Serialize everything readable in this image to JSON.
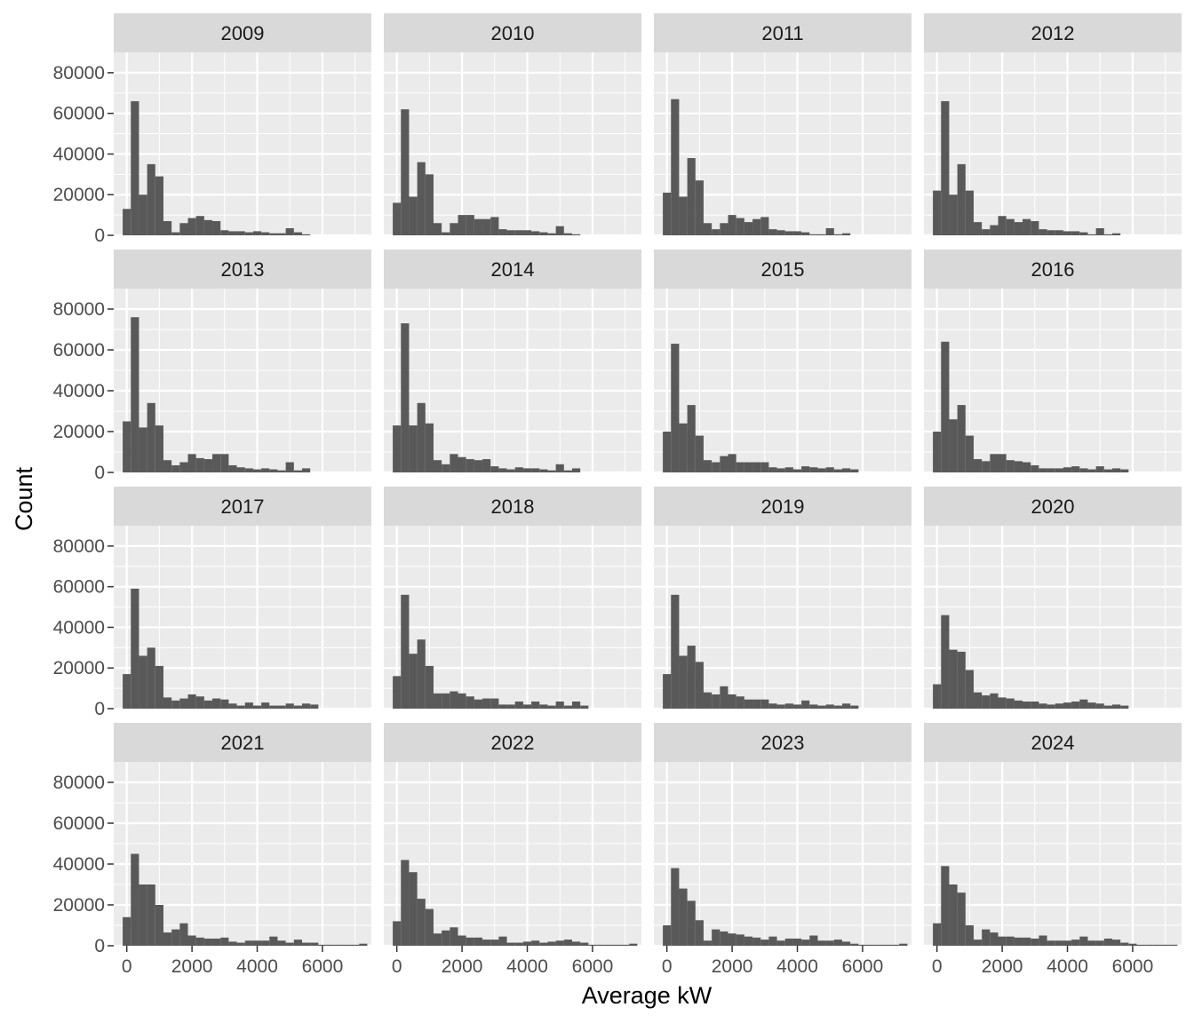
{
  "chart_data": {
    "type": "bar",
    "layout": "facet-grid",
    "xlabel": "Average kW",
    "ylabel": "Count",
    "xlim": [
      -400,
      7500
    ],
    "ylim": [
      0,
      90000
    ],
    "x_ticks": [
      0,
      2000,
      4000,
      6000
    ],
    "y_ticks": [
      0,
      20000,
      40000,
      60000,
      80000
    ],
    "grid": true,
    "bin_width": 250,
    "bin_centers": [
      0,
      250,
      500,
      750,
      1000,
      1250,
      1500,
      1750,
      2000,
      2250,
      2500,
      2750,
      3000,
      3250,
      3500,
      3750,
      4000,
      4250,
      4500,
      4750,
      5000,
      5250,
      5500,
      5750,
      6000,
      6250,
      6500,
      6750,
      7000,
      7250
    ],
    "colors": {
      "bar": "#595959",
      "panel_bg": "#ebebeb",
      "strip_bg": "#d9d9d9",
      "grid": "#ffffff"
    },
    "panels": [
      {
        "year": "2009",
        "values": [
          13000,
          66000,
          20000,
          35000,
          29000,
          7000,
          1500,
          6000,
          8500,
          9500,
          7500,
          7000,
          2500,
          2000,
          2000,
          1500,
          2000,
          1500,
          1000,
          1000,
          3500,
          1500,
          500,
          0,
          0,
          0,
          0,
          0,
          0,
          0
        ]
      },
      {
        "year": "2010",
        "values": [
          16000,
          62000,
          19000,
          36000,
          30000,
          6000,
          1500,
          6000,
          10000,
          10000,
          8000,
          8000,
          9000,
          3000,
          2500,
          2500,
          2500,
          2000,
          1500,
          1000,
          4500,
          1000,
          500,
          0,
          0,
          0,
          0,
          0,
          0,
          0
        ]
      },
      {
        "year": "2011",
        "values": [
          21000,
          67000,
          19000,
          38000,
          27000,
          6000,
          3000,
          6000,
          10000,
          8500,
          6500,
          8000,
          9000,
          3000,
          2500,
          2000,
          2000,
          1500,
          500,
          500,
          3500,
          500,
          1000,
          0,
          0,
          0,
          0,
          0,
          0,
          0
        ]
      },
      {
        "year": "2012",
        "values": [
          22000,
          66000,
          20000,
          35000,
          22000,
          6500,
          3000,
          5000,
          9500,
          8000,
          6500,
          8000,
          7000,
          3000,
          2500,
          2500,
          2000,
          2000,
          1500,
          500,
          3500,
          500,
          1000,
          0,
          0,
          0,
          0,
          0,
          0,
          0
        ]
      },
      {
        "year": "2013",
        "values": [
          25000,
          76000,
          22000,
          34000,
          23000,
          6000,
          3500,
          5000,
          9000,
          7000,
          6500,
          9000,
          9000,
          3500,
          2500,
          2000,
          1500,
          2000,
          1500,
          1000,
          5000,
          1000,
          2000,
          0,
          0,
          0,
          0,
          0,
          0,
          0
        ]
      },
      {
        "year": "2014",
        "values": [
          23000,
          73000,
          23000,
          34000,
          24000,
          6000,
          4000,
          9000,
          7500,
          6500,
          6000,
          6500,
          3000,
          2000,
          1500,
          2500,
          2000,
          2000,
          1500,
          1000,
          4000,
          1000,
          2000,
          0,
          0,
          0,
          0,
          0,
          0,
          0
        ]
      },
      {
        "year": "2015",
        "values": [
          20000,
          63000,
          24000,
          33000,
          18000,
          6000,
          5000,
          8000,
          9000,
          5000,
          5000,
          5000,
          5000,
          2500,
          2000,
          2500,
          1500,
          3000,
          2500,
          2000,
          2500,
          1500,
          2000,
          1500,
          0,
          0,
          0,
          0,
          0,
          0
        ]
      },
      {
        "year": "2016",
        "values": [
          20000,
          64000,
          26000,
          33000,
          18000,
          6500,
          5500,
          9000,
          9000,
          6000,
          5500,
          5000,
          3500,
          2000,
          2000,
          2000,
          2500,
          3000,
          2000,
          1500,
          3000,
          1500,
          2000,
          1500,
          0,
          0,
          0,
          0,
          0,
          0
        ]
      },
      {
        "year": "2017",
        "values": [
          17000,
          59000,
          26000,
          30000,
          21000,
          5500,
          4000,
          5000,
          7000,
          6000,
          4000,
          5000,
          4500,
          2500,
          1500,
          3000,
          1500,
          3000,
          1500,
          1500,
          2500,
          1500,
          2500,
          2000,
          0,
          0,
          0,
          0,
          0,
          0
        ]
      },
      {
        "year": "2018",
        "values": [
          16000,
          56000,
          27000,
          34000,
          21000,
          7500,
          7500,
          8500,
          7500,
          6000,
          4500,
          5000,
          5000,
          2000,
          2000,
          3500,
          2000,
          3500,
          2000,
          1500,
          3500,
          1500,
          3500,
          1500,
          0,
          0,
          0,
          0,
          0,
          0
        ]
      },
      {
        "year": "2019",
        "values": [
          17000,
          56000,
          26000,
          31000,
          23000,
          8000,
          7000,
          11000,
          7000,
          6000,
          4500,
          4500,
          4500,
          2500,
          2000,
          2500,
          2000,
          4000,
          2000,
          1500,
          2000,
          1500,
          2500,
          1500,
          0,
          0,
          0,
          0,
          0,
          0
        ]
      },
      {
        "year": "2020",
        "values": [
          12000,
          46000,
          29000,
          28000,
          19000,
          8000,
          6500,
          7500,
          5500,
          5000,
          4000,
          3500,
          3500,
          2500,
          2000,
          2500,
          3000,
          3500,
          4500,
          3000,
          2500,
          1500,
          2000,
          1500,
          0,
          0,
          0,
          0,
          0,
          0
        ]
      },
      {
        "year": "2021",
        "values": [
          14000,
          45000,
          30000,
          30000,
          20000,
          6500,
          8000,
          11000,
          5000,
          4000,
          3500,
          3500,
          4000,
          2000,
          1500,
          2500,
          2500,
          2500,
          4500,
          2500,
          1500,
          3000,
          1500,
          1500,
          500,
          500,
          500,
          500,
          500,
          1000
        ]
      },
      {
        "year": "2022",
        "values": [
          12000,
          42000,
          36000,
          23000,
          18000,
          6000,
          7500,
          9000,
          5000,
          4000,
          4000,
          3000,
          3000,
          4500,
          1500,
          1500,
          2000,
          2500,
          1500,
          2000,
          2500,
          3000,
          2000,
          1500,
          500,
          500,
          500,
          500,
          500,
          1000
        ]
      },
      {
        "year": "2023",
        "values": [
          10000,
          38000,
          28000,
          22000,
          12500,
          2500,
          8000,
          7000,
          6000,
          5500,
          4500,
          4000,
          3000,
          4500,
          2500,
          3500,
          3500,
          3000,
          5000,
          2500,
          2500,
          3000,
          2000,
          1000,
          500,
          500,
          500,
          500,
          500,
          1000
        ]
      },
      {
        "year": "2024",
        "values": [
          11000,
          39000,
          30000,
          26000,
          10000,
          3000,
          8000,
          6500,
          4500,
          4500,
          4000,
          4000,
          3500,
          5000,
          2500,
          2500,
          2500,
          3000,
          4500,
          2500,
          2500,
          3500,
          3000,
          1500,
          1000,
          500,
          500,
          500,
          500,
          500
        ]
      }
    ]
  }
}
